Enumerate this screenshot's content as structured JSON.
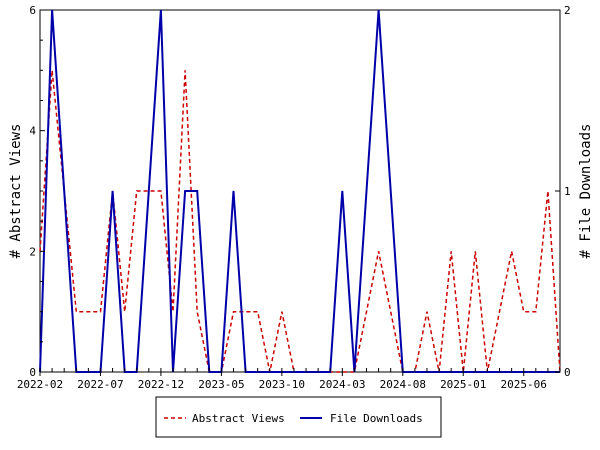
{
  "chart_data": {
    "type": "line",
    "x_ticks": [
      "2022-02",
      "2022-07",
      "2022-12",
      "2023-05",
      "2023-10",
      "2024-03",
      "2024-08",
      "2025-01",
      "2025-06"
    ],
    "x_range": [
      "2022-02",
      "2025-09"
    ],
    "y_left": {
      "label": "# Abstract Views",
      "range": [
        0,
        6
      ],
      "ticks": [
        "0",
        "2",
        "4",
        "6"
      ]
    },
    "y_right": {
      "label": "# File Downloads",
      "range": [
        0,
        2
      ],
      "ticks": [
        "0",
        "1",
        "2"
      ]
    },
    "legend": [
      "Abstract Views",
      "File Downloads"
    ],
    "series": [
      {
        "name": "Abstract Views",
        "axis": "left",
        "color": "#cc0000",
        "style": "dashed",
        "points": [
          [
            "2022-02",
            2
          ],
          [
            "2022-03",
            5
          ],
          [
            "2022-04",
            3
          ],
          [
            "2022-05",
            1
          ],
          [
            "2022-06",
            1
          ],
          [
            "2022-07",
            1
          ],
          [
            "2022-08",
            3
          ],
          [
            "2022-09",
            1
          ],
          [
            "2022-10",
            3
          ],
          [
            "2022-11",
            3
          ],
          [
            "2022-12",
            3
          ],
          [
            "2023-01",
            1
          ],
          [
            "2023-02",
            5
          ],
          [
            "2023-03",
            1
          ],
          [
            "2023-04",
            0
          ],
          [
            "2023-05",
            0
          ],
          [
            "2023-06",
            1
          ],
          [
            "2023-07",
            1
          ],
          [
            "2023-08",
            1
          ],
          [
            "2023-09",
            0
          ],
          [
            "2023-10",
            1
          ],
          [
            "2023-11",
            0
          ],
          [
            "2023-12",
            0
          ],
          [
            "2024-01",
            0
          ],
          [
            "2024-02",
            0
          ],
          [
            "2024-03",
            0
          ],
          [
            "2024-04",
            0
          ],
          [
            "2024-05",
            1
          ],
          [
            "2024-06",
            2
          ],
          [
            "2024-07",
            1
          ],
          [
            "2024-08",
            0
          ],
          [
            "2024-09",
            0
          ],
          [
            "2024-10",
            1
          ],
          [
            "2024-11",
            0
          ],
          [
            "2024-12",
            2
          ],
          [
            "2025-01",
            0
          ],
          [
            "2025-02",
            2
          ],
          [
            "2025-03",
            0
          ],
          [
            "2025-04",
            1
          ],
          [
            "2025-05",
            2
          ],
          [
            "2025-06",
            1
          ],
          [
            "2025-07",
            1
          ],
          [
            "2025-08",
            3
          ],
          [
            "2025-09",
            0
          ]
        ]
      },
      {
        "name": "File Downloads",
        "axis": "right",
        "color": "#0000aa",
        "style": "solid",
        "points": [
          [
            "2022-02",
            0
          ],
          [
            "2022-03",
            2
          ],
          [
            "2022-04",
            1
          ],
          [
            "2022-05",
            0
          ],
          [
            "2022-06",
            0
          ],
          [
            "2022-07",
            0
          ],
          [
            "2022-08",
            1
          ],
          [
            "2022-09",
            0
          ],
          [
            "2022-10",
            0
          ],
          [
            "2022-11",
            1
          ],
          [
            "2022-12",
            2
          ],
          [
            "2023-01",
            0
          ],
          [
            "2023-02",
            1
          ],
          [
            "2023-03",
            1
          ],
          [
            "2023-04",
            0
          ],
          [
            "2023-05",
            0
          ],
          [
            "2023-06",
            1
          ],
          [
            "2023-07",
            0
          ],
          [
            "2023-08",
            0
          ],
          [
            "2023-09",
            0
          ],
          [
            "2023-10",
            0
          ],
          [
            "2023-11",
            0
          ],
          [
            "2023-12",
            0
          ],
          [
            "2024-01",
            0
          ],
          [
            "2024-02",
            0
          ],
          [
            "2024-03",
            1
          ],
          [
            "2024-04",
            0
          ],
          [
            "2024-05",
            1
          ],
          [
            "2024-06",
            2
          ],
          [
            "2024-07",
            1
          ],
          [
            "2024-08",
            0
          ],
          [
            "2024-09",
            0
          ],
          [
            "2024-10",
            0
          ],
          [
            "2024-11",
            0
          ],
          [
            "2024-12",
            0
          ],
          [
            "2025-01",
            0
          ],
          [
            "2025-02",
            0
          ],
          [
            "2025-03",
            0
          ],
          [
            "2025-04",
            0
          ],
          [
            "2025-05",
            0
          ],
          [
            "2025-06",
            0
          ],
          [
            "2025-07",
            0
          ],
          [
            "2025-08",
            0
          ],
          [
            "2025-09",
            0
          ]
        ]
      }
    ]
  }
}
